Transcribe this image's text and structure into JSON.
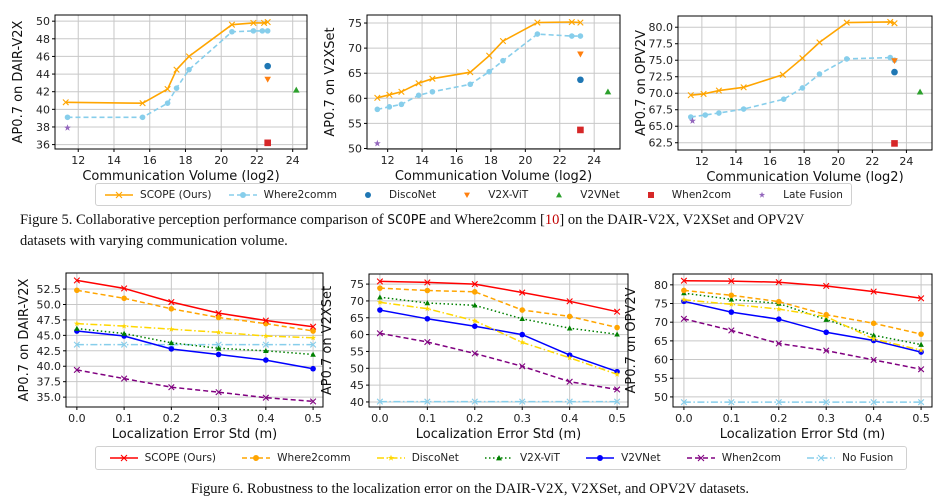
{
  "figure5": {
    "legend": [
      {
        "name": "SCOPE (Ours)",
        "color": "#ffa500",
        "marker": "x",
        "dash": "solid"
      },
      {
        "name": "Where2comm",
        "color": "#87ceeb",
        "marker": "o",
        "dash": "dashed"
      },
      {
        "name": "DiscoNet",
        "color": "#1f77b4",
        "marker": "o",
        "dash": "none"
      },
      {
        "name": "V2X-ViT",
        "color": "#ff7f0e",
        "marker": "v",
        "dash": "none"
      },
      {
        "name": "V2VNet",
        "color": "#2ca02c",
        "marker": "^",
        "dash": "none"
      },
      {
        "name": "When2com",
        "color": "#d62728",
        "marker": "s",
        "dash": "none"
      },
      {
        "name": "Late Fusion",
        "color": "#9467bd",
        "marker": "*",
        "dash": "none"
      }
    ],
    "caption": {
      "prefix": "Figure 5. Collaborative perception performance comparison of ",
      "method": "SCOPE",
      "middle": " and Where2comm [",
      "ref": "10",
      "suffix": "] on the DAIR-V2X, V2XSet and OPV2V",
      "line2": "datasets with varying communication volume."
    }
  },
  "figure6": {
    "legend": [
      {
        "name": "SCOPE (Ours)",
        "color": "#ff0000",
        "marker": "x",
        "dash": "solid"
      },
      {
        "name": "Where2comm",
        "color": "#ffa500",
        "marker": "o",
        "dash": "dashed"
      },
      {
        "name": "DiscoNet",
        "color": "#ffd700",
        "marker": "*",
        "dash": "dashdot"
      },
      {
        "name": "V2X-ViT",
        "color": "#008000",
        "marker": "^",
        "dash": "dotted"
      },
      {
        "name": "V2VNet",
        "color": "#0000ff",
        "marker": "o",
        "dash": "solid"
      },
      {
        "name": "When2com",
        "color": "#800080",
        "marker": "x",
        "dash": "dashed"
      },
      {
        "name": "No Fusion",
        "color": "#87ceeb",
        "marker": "x",
        "dash": "dashdot"
      }
    ],
    "caption": "Figure 6. Robustness to the localization error on the DAIR-V2X, V2XSet, and OPV2V datasets."
  },
  "chart_data": [
    {
      "type": "line",
      "xlabel": "Communication Volume (log2)",
      "ylabel": "AP0.7 on DAIR-V2X",
      "xlim": [
        10.7,
        24.8
      ],
      "ylim": [
        35.5,
        50.7
      ],
      "xticks": [
        12,
        14,
        16,
        18,
        20,
        22,
        24
      ],
      "yticks": [
        36,
        38,
        40,
        42,
        44,
        46,
        48,
        50
      ],
      "grid": true,
      "series": [
        {
          "name": "SCOPE (Ours)",
          "x": [
            11.3,
            15.6,
            17.0,
            17.5,
            18.2,
            20.6,
            21.8,
            22.4,
            22.6
          ],
          "y": [
            40.8,
            40.7,
            42.3,
            44.5,
            46.0,
            49.6,
            49.8,
            49.8,
            49.9
          ]
        },
        {
          "name": "Where2comm",
          "x": [
            11.4,
            15.6,
            17.0,
            17.5,
            18.2,
            20.6,
            21.8,
            22.3,
            22.6
          ],
          "y": [
            39.1,
            39.1,
            40.7,
            42.4,
            44.5,
            48.8,
            48.9,
            48.9,
            48.9
          ]
        },
        {
          "name": "DiscoNet",
          "x": [
            22.6
          ],
          "y": [
            44.9
          ]
        },
        {
          "name": "V2X-ViT",
          "x": [
            22.6
          ],
          "y": [
            43.4
          ]
        },
        {
          "name": "V2VNet",
          "x": [
            24.2
          ],
          "y": [
            42.2
          ]
        },
        {
          "name": "When2com",
          "x": [
            22.6
          ],
          "y": [
            36.2
          ]
        },
        {
          "name": "Late Fusion",
          "x": [
            11.4
          ],
          "y": [
            37.9
          ]
        }
      ]
    },
    {
      "type": "line",
      "xlabel": "Communication Volume (log2)",
      "ylabel": "AP0.7 on V2XSet",
      "xlim": [
        10.8,
        25.5
      ],
      "ylim": [
        49.9,
        76.6
      ],
      "xticks": [
        12,
        14,
        16,
        18,
        20,
        22,
        24
      ],
      "yticks": [
        50,
        55,
        60,
        65,
        70,
        75
      ],
      "grid": true,
      "series": [
        {
          "name": "SCOPE (Ours)",
          "x": [
            11.4,
            12.1,
            12.8,
            13.8,
            14.6,
            16.8,
            17.9,
            18.7,
            20.7,
            22.7,
            23.2
          ],
          "y": [
            60.1,
            60.7,
            61.3,
            63.0,
            63.9,
            65.2,
            68.5,
            71.4,
            75.1,
            75.2,
            75.1
          ]
        },
        {
          "name": "Where2comm",
          "x": [
            11.4,
            12.1,
            12.8,
            13.8,
            14.6,
            16.8,
            17.9,
            18.7,
            20.7,
            22.7,
            23.2
          ],
          "y": [
            57.8,
            58.3,
            58.8,
            60.6,
            61.3,
            62.8,
            65.3,
            67.5,
            72.8,
            72.4,
            72.4
          ]
        },
        {
          "name": "DiscoNet",
          "x": [
            23.2
          ],
          "y": [
            63.7
          ]
        },
        {
          "name": "V2X-ViT",
          "x": [
            23.2
          ],
          "y": [
            68.8
          ]
        },
        {
          "name": "V2VNet",
          "x": [
            24.8
          ],
          "y": [
            61.3
          ]
        },
        {
          "name": "When2com",
          "x": [
            23.2
          ],
          "y": [
            53.7
          ]
        },
        {
          "name": "Late Fusion",
          "x": [
            11.4
          ],
          "y": [
            51.0
          ]
        }
      ]
    },
    {
      "type": "line",
      "xlabel": "Communication Volume (log2)",
      "ylabel": "AP0.7 on OPV2V",
      "xlim": [
        10.6,
        25.5
      ],
      "ylim": [
        61.4,
        81.7
      ],
      "xticks": [
        12,
        14,
        16,
        18,
        20,
        22,
        24
      ],
      "yticks": [
        62.5,
        65.0,
        67.5,
        70.0,
        72.5,
        75.0,
        77.5,
        80.0
      ],
      "ytick_decimals": 1,
      "grid": true,
      "series": [
        {
          "name": "SCOPE (Ours)",
          "x": [
            11.35,
            12.1,
            13.0,
            14.45,
            16.75,
            17.9,
            18.9,
            20.5,
            23.05,
            23.3
          ],
          "y": [
            69.7,
            69.9,
            70.4,
            70.9,
            72.8,
            75.3,
            77.7,
            80.7,
            80.8,
            80.6
          ]
        },
        {
          "name": "Where2comm",
          "x": [
            11.35,
            12.2,
            13.0,
            14.45,
            16.8,
            17.9,
            18.9,
            20.5,
            23.05,
            23.3
          ],
          "y": [
            66.4,
            66.7,
            67.0,
            67.6,
            69.1,
            70.8,
            72.9,
            75.2,
            75.4,
            75.0
          ]
        },
        {
          "name": "DiscoNet",
          "x": [
            23.3
          ],
          "y": [
            73.2
          ]
        },
        {
          "name": "V2X-ViT",
          "x": [
            23.3
          ],
          "y": [
            74.9
          ]
        },
        {
          "name": "V2VNet",
          "x": [
            24.8
          ],
          "y": [
            70.2
          ]
        },
        {
          "name": "When2com",
          "x": [
            23.3
          ],
          "y": [
            62.4
          ]
        },
        {
          "name": "Late Fusion",
          "x": [
            11.45
          ],
          "y": [
            65.8
          ]
        }
      ]
    },
    {
      "type": "line",
      "xlabel": "Localization Error Std (m)",
      "ylabel": "AP0.7 on DAIR-V2X",
      "xlim": [
        -0.023,
        0.521
      ],
      "ylim": [
        33.4,
        55.1
      ],
      "xticks": [
        0.0,
        0.1,
        0.2,
        0.3,
        0.4,
        0.5
      ],
      "xtick_decimals": 1,
      "yticks": [
        35.0,
        37.5,
        40.0,
        42.5,
        45.0,
        47.5,
        50.0,
        52.5
      ],
      "ytick_decimals": 1,
      "grid": true,
      "x": [
        0.0,
        0.1,
        0.2,
        0.3,
        0.4,
        0.5
      ],
      "series": [
        {
          "name": "SCOPE (Ours)",
          "y": [
            53.9,
            52.6,
            50.4,
            48.6,
            47.4,
            46.4
          ]
        },
        {
          "name": "Where2comm",
          "y": [
            52.3,
            51.0,
            49.3,
            47.9,
            46.9,
            45.7
          ]
        },
        {
          "name": "DiscoNet",
          "y": [
            46.9,
            46.5,
            46.0,
            45.5,
            44.9,
            44.6
          ]
        },
        {
          "name": "V2X-ViT",
          "y": [
            46.1,
            45.3,
            43.8,
            42.9,
            42.5,
            41.9
          ]
        },
        {
          "name": "V2VNet",
          "y": [
            45.7,
            44.9,
            42.8,
            41.9,
            41.0,
            39.6
          ]
        },
        {
          "name": "When2com",
          "y": [
            39.4,
            38.0,
            36.6,
            35.8,
            34.9,
            34.3
          ]
        },
        {
          "name": "No Fusion",
          "y": [
            43.5,
            43.5,
            43.5,
            43.5,
            43.5,
            43.5
          ]
        }
      ]
    },
    {
      "type": "line",
      "xlabel": "Localization Error Std (m)",
      "ylabel": "AP0.7 on V2XSet",
      "xlim": [
        -0.023,
        0.523
      ],
      "ylim": [
        38.5,
        78.0
      ],
      "xticks": [
        0.0,
        0.1,
        0.2,
        0.3,
        0.4,
        0.5
      ],
      "xtick_decimals": 1,
      "yticks": [
        40,
        45,
        50,
        55,
        60,
        65,
        70,
        75
      ],
      "grid": true,
      "x": [
        0.0,
        0.1,
        0.2,
        0.3,
        0.4,
        0.5
      ],
      "series": [
        {
          "name": "SCOPE (Ours)",
          "y": [
            75.8,
            75.5,
            75.0,
            72.5,
            69.9,
            66.8
          ]
        },
        {
          "name": "Where2comm",
          "y": [
            73.8,
            73.1,
            72.7,
            67.3,
            65.4,
            62.1
          ]
        },
        {
          "name": "DiscoNet",
          "y": [
            69.6,
            67.7,
            64.1,
            57.7,
            53.1,
            48.2
          ]
        },
        {
          "name": "V2X-ViT",
          "y": [
            71.1,
            69.4,
            68.7,
            64.7,
            61.9,
            60.1
          ]
        },
        {
          "name": "V2VNet",
          "y": [
            67.3,
            64.7,
            62.5,
            60.0,
            53.9,
            49.0
          ]
        },
        {
          "name": "When2com",
          "y": [
            60.4,
            57.8,
            54.4,
            50.6,
            46.0,
            43.7
          ]
        },
        {
          "name": "No Fusion",
          "y": [
            40.1,
            40.1,
            40.1,
            40.1,
            40.1,
            40.1
          ]
        }
      ]
    },
    {
      "type": "line",
      "xlabel": "Localization Error Std (m)",
      "ylabel": "AP0.7 on OPV2V",
      "xlim": [
        -0.023,
        0.523
      ],
      "ylim": [
        47.3,
        82.9
      ],
      "xticks": [
        0.0,
        0.1,
        0.2,
        0.3,
        0.4,
        0.5
      ],
      "xtick_decimals": 1,
      "yticks": [
        50,
        55,
        60,
        65,
        70,
        75,
        80
      ],
      "grid": true,
      "x": [
        0.0,
        0.1,
        0.2,
        0.3,
        0.4,
        0.5
      ],
      "series": [
        {
          "name": "SCOPE (Ours)",
          "y": [
            81.1,
            81.0,
            80.7,
            79.7,
            78.2,
            76.4
          ]
        },
        {
          "name": "Where2comm",
          "y": [
            78.5,
            77.2,
            75.5,
            72.0,
            69.7,
            66.8
          ]
        },
        {
          "name": "DiscoNet",
          "y": [
            76.0,
            74.8,
            73.5,
            71.5,
            65.5,
            62.5
          ]
        },
        {
          "name": "V2X-ViT",
          "y": [
            77.8,
            76.1,
            75.0,
            70.7,
            66.5,
            64.0
          ]
        },
        {
          "name": "V2VNet",
          "y": [
            75.6,
            72.7,
            70.8,
            67.3,
            65.1,
            62.0
          ]
        },
        {
          "name": "When2com",
          "y": [
            70.9,
            67.8,
            64.3,
            62.4,
            59.9,
            57.4
          ]
        },
        {
          "name": "No Fusion",
          "y": [
            48.6,
            48.6,
            48.6,
            48.6,
            48.6,
            48.6
          ]
        }
      ]
    }
  ]
}
